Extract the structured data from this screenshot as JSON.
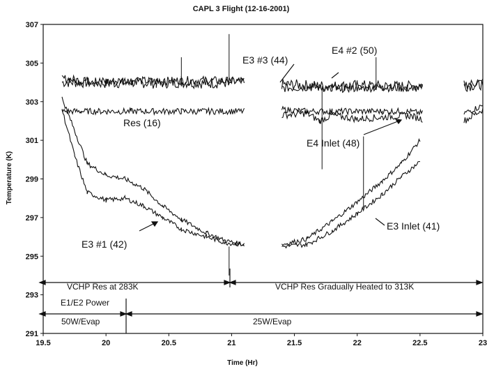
{
  "chart_data": {
    "type": "line",
    "title": "CAPL 3 Flight   (12-16-2001)",
    "xlabel": "Time (Hr)",
    "ylabel": "Temperature (K)",
    "xlim": [
      19.5,
      23
    ],
    "ylim": [
      291,
      307
    ],
    "xticks": [
      "19.5",
      "20",
      "20.5",
      "21",
      "21.5",
      "22",
      "22.5",
      "23"
    ],
    "yticks": [
      "291",
      "293",
      "295",
      "297",
      "299",
      "301",
      "303",
      "305",
      "307"
    ],
    "grid": false,
    "series": [
      {
        "name": "E3 #3 (44)",
        "values": [
          [
            19.65,
            304.0
          ],
          [
            19.8,
            304.0
          ],
          [
            20.0,
            303.95
          ],
          [
            20.2,
            304.0
          ],
          [
            20.4,
            303.95
          ],
          [
            20.6,
            304.0
          ],
          [
            20.8,
            303.95
          ],
          [
            21.1,
            304.0
          ],
          [
            null,
            null
          ],
          [
            21.4,
            303.9
          ],
          [
            21.6,
            303.85
          ],
          [
            21.8,
            303.8
          ],
          [
            22.0,
            303.85
          ],
          [
            22.2,
            303.8
          ],
          [
            22.4,
            303.8
          ],
          [
            22.52,
            303.85
          ],
          [
            null,
            null
          ],
          [
            22.85,
            303.8
          ],
          [
            23.0,
            303.9
          ]
        ]
      },
      {
        "name": "E4 #2 (50)",
        "values": [
          [
            19.65,
            304.2
          ],
          [
            19.8,
            304.1
          ],
          [
            20.0,
            304.05
          ],
          [
            20.2,
            304.1
          ],
          [
            20.4,
            304.05
          ],
          [
            20.6,
            304.1
          ],
          [
            20.8,
            304.1
          ],
          [
            21.1,
            304.05
          ],
          [
            null,
            null
          ],
          [
            21.4,
            303.7
          ],
          [
            21.6,
            303.75
          ],
          [
            21.8,
            303.7
          ],
          [
            22.0,
            303.7
          ],
          [
            22.2,
            303.75
          ],
          [
            22.4,
            303.7
          ],
          [
            22.52,
            303.7
          ],
          [
            null,
            null
          ],
          [
            22.85,
            303.9
          ],
          [
            23.0,
            304.0
          ]
        ]
      },
      {
        "name": "Res (16)",
        "values": [
          [
            19.65,
            302.5
          ],
          [
            19.8,
            302.5
          ],
          [
            20.0,
            302.5
          ],
          [
            20.2,
            302.5
          ],
          [
            20.4,
            302.5
          ],
          [
            20.6,
            302.5
          ],
          [
            20.8,
            302.5
          ],
          [
            21.1,
            302.5
          ],
          [
            null,
            null
          ],
          [
            21.4,
            302.6
          ],
          [
            21.6,
            302.5
          ],
          [
            21.8,
            302.5
          ],
          [
            22.0,
            302.5
          ],
          [
            22.2,
            302.5
          ],
          [
            22.4,
            302.5
          ],
          [
            22.52,
            302.4
          ],
          [
            null,
            null
          ],
          [
            22.85,
            302.4
          ],
          [
            23.0,
            302.8
          ]
        ]
      },
      {
        "name": "E4 Inlet (48)",
        "values": [
          [
            21.4,
            302.3
          ],
          [
            21.6,
            302.4
          ],
          [
            21.7,
            302.0
          ],
          [
            21.8,
            302.3
          ],
          [
            22.0,
            302.1
          ],
          [
            22.2,
            302.2
          ],
          [
            22.4,
            302.3
          ],
          [
            22.52,
            302.1
          ],
          [
            null,
            null
          ],
          [
            22.85,
            302.0
          ],
          [
            23.0,
            302.6
          ]
        ]
      },
      {
        "name": "E3 #1 (42)",
        "values": [
          [
            19.65,
            303.2
          ],
          [
            19.75,
            301.5
          ],
          [
            19.85,
            299.8
          ],
          [
            20.0,
            299.2
          ],
          [
            20.15,
            299.0
          ],
          [
            20.3,
            298.5
          ],
          [
            20.45,
            297.6
          ],
          [
            20.6,
            296.9
          ],
          [
            20.8,
            296.2
          ],
          [
            20.95,
            295.8
          ],
          [
            21.1,
            295.6
          ],
          [
            null,
            null
          ],
          [
            21.4,
            295.6
          ],
          [
            21.6,
            295.9
          ],
          [
            21.8,
            296.8
          ],
          [
            22.0,
            297.8
          ],
          [
            22.2,
            298.9
          ],
          [
            22.35,
            299.8
          ],
          [
            22.5,
            301.0
          ]
        ]
      },
      {
        "name": "E3 Inlet (41)",
        "values": [
          [
            19.65,
            302.6
          ],
          [
            19.75,
            300.2
          ],
          [
            19.85,
            298.3
          ],
          [
            20.0,
            297.9
          ],
          [
            20.15,
            298.0
          ],
          [
            20.3,
            297.6
          ],
          [
            20.45,
            297.0
          ],
          [
            20.6,
            296.4
          ],
          [
            20.8,
            296.0
          ],
          [
            20.95,
            295.7
          ],
          [
            21.1,
            295.6
          ],
          [
            null,
            null
          ],
          [
            21.4,
            295.5
          ],
          [
            21.6,
            295.6
          ],
          [
            21.8,
            296.3
          ],
          [
            22.0,
            297.2
          ],
          [
            22.2,
            298.2
          ],
          [
            22.35,
            299.1
          ],
          [
            22.5,
            299.9
          ]
        ]
      }
    ],
    "annotations": {
      "e3_3": "E3 #3 (44)",
      "e4_2": "E4 #2 (50)",
      "res": "Res (16)",
      "e4_inlet": "E4 Inlet (48)",
      "e3_1": "E3 #1 (42)",
      "e3_inlet": "E3 Inlet (41)",
      "vchp_283": "VCHP Res at 283K",
      "vchp_313": "VCHP Res Gradually Heated to 313K",
      "e1e2_power": "E1/E2 Power",
      "evap_50": "50W/Evap",
      "evap_25": "25W/Evap"
    }
  }
}
